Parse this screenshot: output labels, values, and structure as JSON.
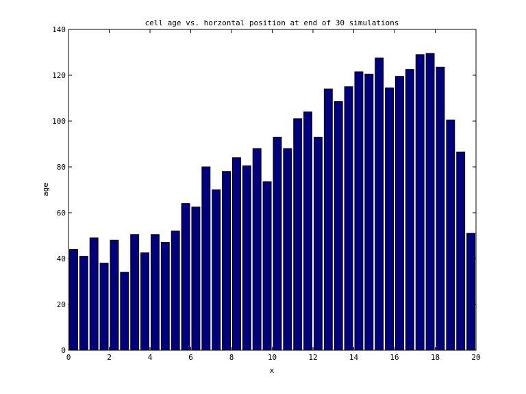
{
  "chart_data": {
    "type": "bar",
    "title": "cell age vs. horzontal position at end of 30 simulations",
    "xlabel": "x",
    "ylabel": "age",
    "xlim": [
      0,
      20
    ],
    "ylim": [
      0,
      140
    ],
    "xticks": [
      0,
      2,
      4,
      6,
      8,
      10,
      12,
      14,
      16,
      18,
      20
    ],
    "yticks": [
      0,
      20,
      40,
      60,
      80,
      100,
      120,
      140
    ],
    "bar_width": 0.4,
    "x": [
      0.25,
      0.75,
      1.25,
      1.75,
      2.25,
      2.75,
      3.25,
      3.75,
      4.25,
      4.75,
      5.25,
      5.75,
      6.25,
      6.75,
      7.25,
      7.75,
      8.25,
      8.75,
      9.25,
      9.75,
      10.25,
      10.75,
      11.25,
      11.75,
      12.25,
      12.75,
      13.25,
      13.75,
      14.25,
      14.75,
      15.25,
      15.75,
      16.25,
      16.75,
      17.25,
      17.75,
      18.25,
      18.75,
      19.25,
      19.75
    ],
    "values": [
      44,
      41,
      49,
      38,
      48,
      34,
      50.5,
      42.5,
      50.5,
      47,
      52,
      64,
      62.5,
      80,
      70,
      78,
      84,
      80.5,
      88,
      73.5,
      93,
      88,
      101,
      104,
      93,
      114,
      108.5,
      115,
      121.5,
      120.5,
      127.5,
      114.5,
      119.5,
      122.5,
      129,
      129.5,
      123.5,
      100.5,
      86.5,
      51
    ],
    "bar_color": "#00007f",
    "grid": false
  }
}
